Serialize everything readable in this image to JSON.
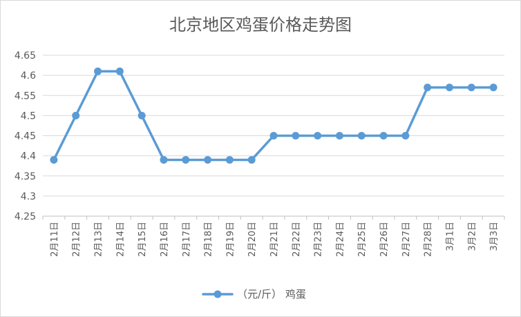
{
  "chart_data": {
    "type": "line",
    "title": "北京地区鸡蛋价格走势图",
    "categories": [
      "2月11日",
      "2月12日",
      "2月13日",
      "2月14日",
      "2月15日",
      "2月16日",
      "2月17日",
      "2月18日",
      "2月19日",
      "2月20日",
      "2月21日",
      "2月22日",
      "2月23日",
      "2月24日",
      "2月25日",
      "2月26日",
      "2月27日",
      "2月28日",
      "3月1日",
      "3月2日",
      "3月3日"
    ],
    "series": [
      {
        "name": "（元/斤） 鸡蛋",
        "color": "#5b9bd5",
        "values": [
          4.39,
          4.5,
          4.61,
          4.61,
          4.5,
          4.39,
          4.39,
          4.39,
          4.39,
          4.39,
          4.45,
          4.45,
          4.45,
          4.45,
          4.45,
          4.45,
          4.45,
          4.57,
          4.57,
          4.57,
          4.57
        ]
      }
    ],
    "yticks": [
      "4.25",
      "4.3",
      "4.35",
      "4.4",
      "4.45",
      "4.5",
      "4.55",
      "4.6",
      "4.65"
    ],
    "ylim": [
      4.25,
      4.65
    ],
    "xlabel": "",
    "ylabel": "",
    "grid": true,
    "legend": "bottom"
  }
}
